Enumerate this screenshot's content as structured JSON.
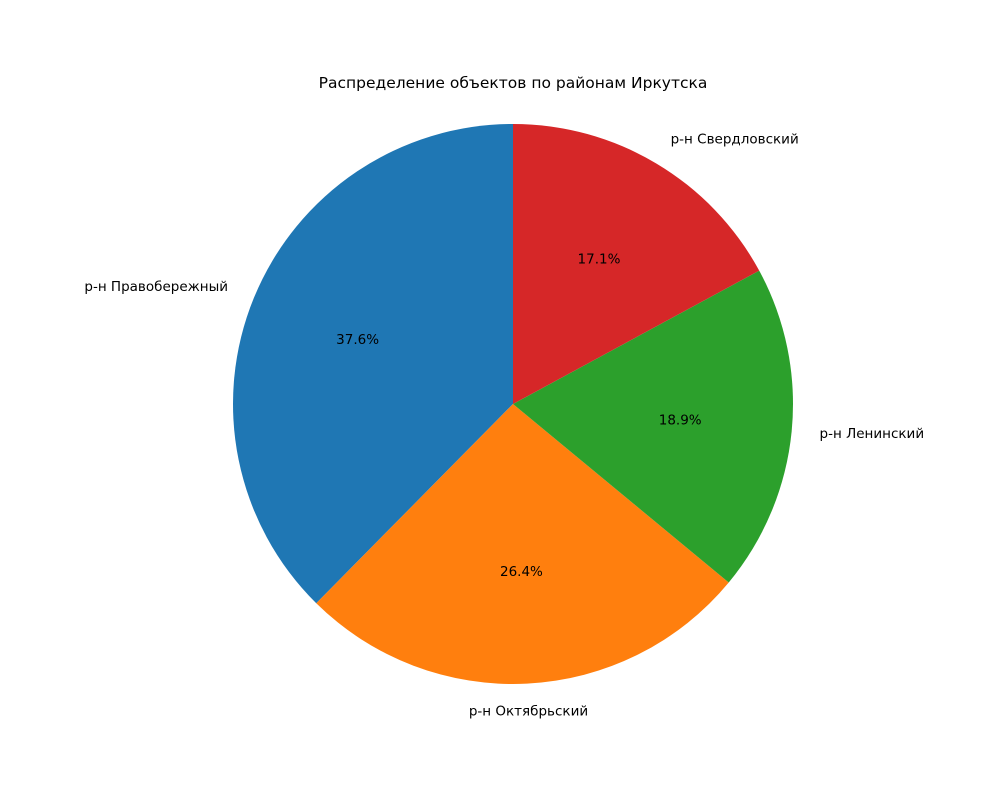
{
  "chart_data": {
    "type": "pie",
    "title": "Распределение объектов по районам Иркутска",
    "start_angle_deg": 90,
    "direction": "counterclockwise",
    "slices": [
      {
        "label": "р-н Правобережный",
        "value": 37.6,
        "pct_label": "37.6%",
        "color": "#1f77b4"
      },
      {
        "label": "р-н Октябрьский",
        "value": 26.4,
        "pct_label": "26.4%",
        "color": "#ff7f0e"
      },
      {
        "label": "р-н Ленинский",
        "value": 18.9,
        "pct_label": "18.9%",
        "color": "#2ca02c"
      },
      {
        "label": "р-н Свердловский",
        "value": 17.1,
        "pct_label": "17.1%",
        "color": "#d62728"
      }
    ]
  }
}
